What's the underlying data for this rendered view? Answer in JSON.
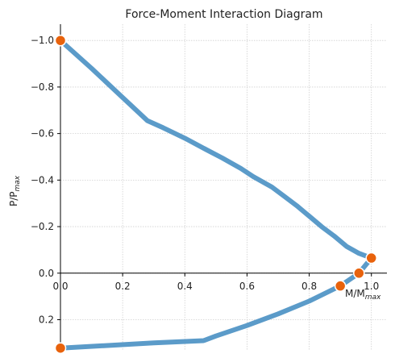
{
  "chart_data": {
    "type": "line",
    "title": "Force-Moment Interaction Diagram",
    "xlabel": "M/M",
    "xlabel_sub": "max",
    "ylabel": "P/P",
    "ylabel_sub": "max",
    "xlim": [
      0.0,
      1.05
    ],
    "ylim": [
      0.33,
      -1.07
    ],
    "y_inverted": true,
    "grid": true,
    "x_ticks": [
      0.0,
      0.2,
      0.4,
      0.6,
      0.8,
      1.0
    ],
    "x_tick_labels": [
      "0.0",
      "0.2",
      "0.4",
      "0.6",
      "0.8",
      "1.0"
    ],
    "y_ticks": [
      -1.0,
      -0.8,
      -0.6,
      -0.4,
      -0.2,
      0.0,
      0.2
    ],
    "y_tick_labels": [
      "−1.0",
      "−0.8",
      "−0.6",
      "−0.4",
      "−0.2",
      "0.0",
      "0.2"
    ],
    "line_color": "#5b9bc9",
    "marker_color": "#e8620c",
    "series": [
      {
        "values": [
          {
            "x": 0.0,
            "y": -1.0
          },
          {
            "x": 0.1,
            "y": -0.88
          },
          {
            "x": 0.2,
            "y": -0.755
          },
          {
            "x": 0.28,
            "y": -0.655
          },
          {
            "x": 0.33,
            "y": -0.625
          },
          {
            "x": 0.4,
            "y": -0.58
          },
          {
            "x": 0.47,
            "y": -0.53
          },
          {
            "x": 0.52,
            "y": -0.495
          },
          {
            "x": 0.58,
            "y": -0.45
          },
          {
            "x": 0.62,
            "y": -0.415
          },
          {
            "x": 0.68,
            "y": -0.37
          },
          {
            "x": 0.72,
            "y": -0.33
          },
          {
            "x": 0.76,
            "y": -0.29
          },
          {
            "x": 0.8,
            "y": -0.245
          },
          {
            "x": 0.84,
            "y": -0.2
          },
          {
            "x": 0.88,
            "y": -0.16
          },
          {
            "x": 0.92,
            "y": -0.115
          },
          {
            "x": 0.96,
            "y": -0.085
          },
          {
            "x": 1.0,
            "y": -0.065
          },
          {
            "x": 0.96,
            "y": 0.0
          },
          {
            "x": 0.9,
            "y": 0.055
          },
          {
            "x": 0.8,
            "y": 0.12
          },
          {
            "x": 0.7,
            "y": 0.175
          },
          {
            "x": 0.6,
            "y": 0.225
          },
          {
            "x": 0.5,
            "y": 0.27
          },
          {
            "x": 0.46,
            "y": 0.29
          },
          {
            "x": 0.3,
            "y": 0.3
          },
          {
            "x": 0.0,
            "y": 0.322
          }
        ]
      }
    ],
    "markers": [
      {
        "x": 0.0,
        "y": -1.0
      },
      {
        "x": 1.0,
        "y": -0.065
      },
      {
        "x": 0.96,
        "y": 0.0
      },
      {
        "x": 0.9,
        "y": 0.055
      },
      {
        "x": 0.0,
        "y": 0.322
      }
    ]
  }
}
